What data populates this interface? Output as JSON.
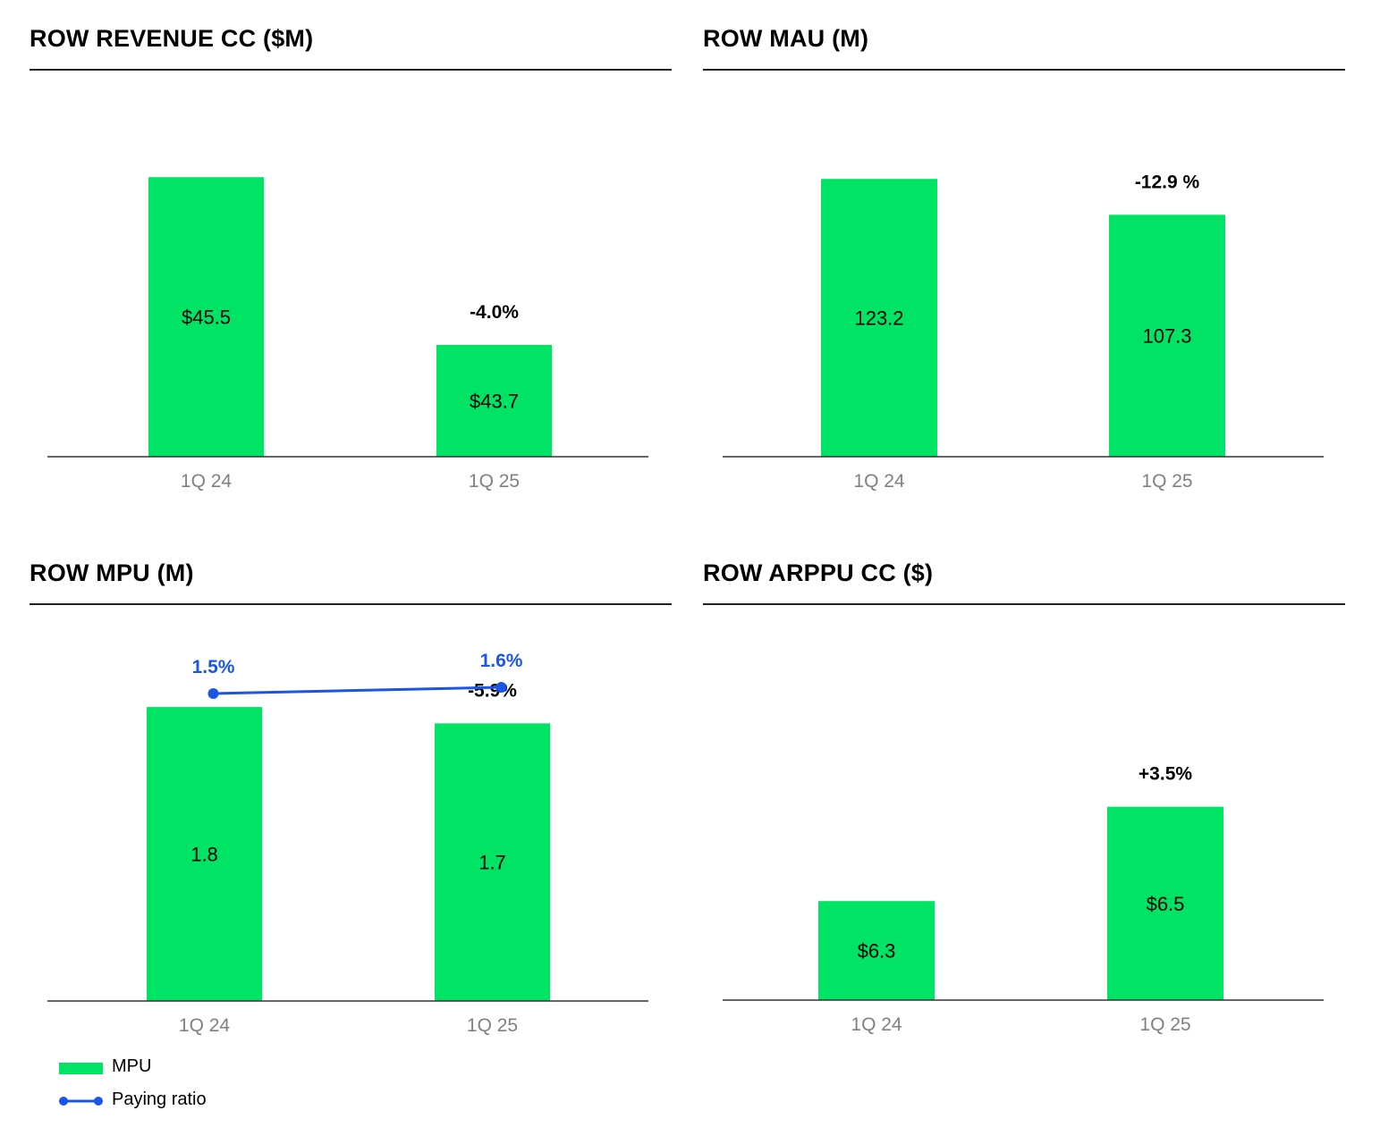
{
  "colors": {
    "bar": "#00e364",
    "ratio_line": "#1a55e8",
    "axis": "#333333",
    "tick_text": "#808080"
  },
  "legend": [
    {
      "label": "MPU",
      "kind": "bar"
    },
    {
      "label": "Paying ratio",
      "kind": "line"
    }
  ],
  "chart_data": [
    {
      "id": "revenue",
      "type": "bar",
      "title": "ROW REVENUE CC ($M)",
      "categories": [
        "1Q 24",
        "1Q 25"
      ],
      "values": [
        45.5,
        43.7
      ],
      "value_labels": [
        "$45.5",
        "$43.7"
      ],
      "change_labels": [
        "",
        "-4.0%"
      ],
      "ylim": [
        42.5,
        46.25
      ]
    },
    {
      "id": "mau",
      "type": "bar",
      "title": "ROW MAU (M)",
      "categories": [
        "1Q 24",
        "1Q 25"
      ],
      "values": [
        123.2,
        107.3
      ],
      "value_labels": [
        "123.2",
        "107.3"
      ],
      "change_labels": [
        "",
        "-12.9 %"
      ],
      "ylim": [
        0,
        155
      ]
    },
    {
      "id": "mpu",
      "type": "bar",
      "title": "ROW MPU (M)",
      "categories": [
        "1Q 24",
        "1Q 25"
      ],
      "values": [
        1.8,
        1.7
      ],
      "value_labels": [
        "1.8",
        "1.7"
      ],
      "change_labels": [
        "",
        "-5.9%"
      ],
      "ylim": [
        0,
        2.2
      ],
      "overlay": {
        "type": "line",
        "name": "Paying ratio",
        "values": [
          1.5,
          1.6
        ],
        "value_labels": [
          "1.5%",
          "1.6%"
        ]
      }
    },
    {
      "id": "arppu",
      "type": "bar",
      "title": "ROW ARPPU CC ($)",
      "categories": [
        "1Q 24",
        "1Q 25"
      ],
      "values": [
        6.3,
        6.5
      ],
      "value_labels": [
        "$6.3",
        "$6.5"
      ],
      "change_labels": [
        "",
        "+3.5%"
      ],
      "ylim": [
        6.09,
        6.85
      ]
    }
  ]
}
